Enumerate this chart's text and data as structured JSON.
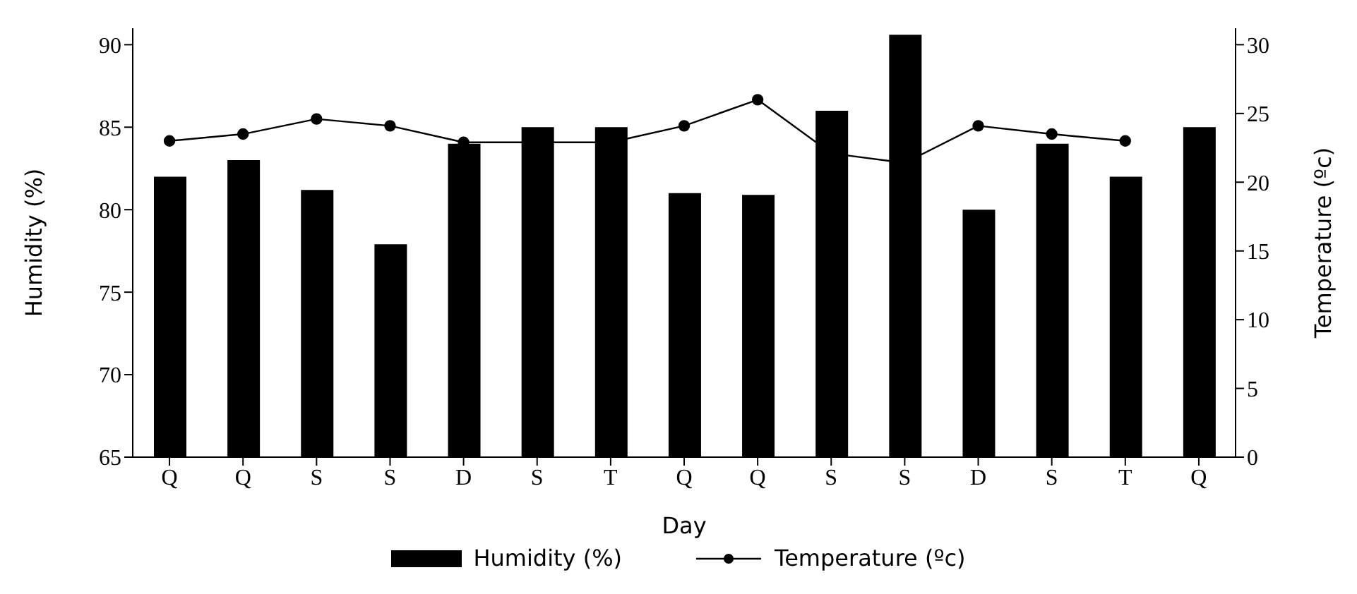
{
  "chart_data": {
    "type": "bar",
    "xlabel": "Day",
    "ylabel": "Humidity (%)",
    "y2label": "Temperature (ºc)",
    "categories": [
      "Q",
      "Q",
      "S",
      "S",
      "D",
      "S",
      "T",
      "Q",
      "Q",
      "S",
      "S",
      "D",
      "S",
      "T",
      "Q"
    ],
    "series": [
      {
        "name": "Humidity (%)",
        "color": "#000000",
        "values": [
          82,
          83,
          81.2,
          77.9,
          84,
          85,
          85,
          81,
          80.9,
          86,
          90.6,
          80,
          84,
          82,
          85
        ]
      },
      {
        "name": "Temperature (ºc)",
        "type": "line",
        "axis": "y2",
        "color": "#000000",
        "values": [
          23,
          23.5,
          24.6,
          24.1,
          22.9,
          22.9,
          22.9,
          24.1,
          26,
          22.1,
          21.4,
          24.1,
          23.5,
          23,
          null
        ]
      }
    ],
    "ylim": [
      65,
      91
    ],
    "yticks": [
      65,
      70,
      75,
      80,
      85,
      90
    ],
    "y2lim": [
      0,
      31.2
    ],
    "y2ticks": [
      0,
      5,
      10,
      15,
      20,
      25,
      30
    ],
    "legend": "bottom",
    "marker": "circle",
    "line_style": "solid"
  }
}
